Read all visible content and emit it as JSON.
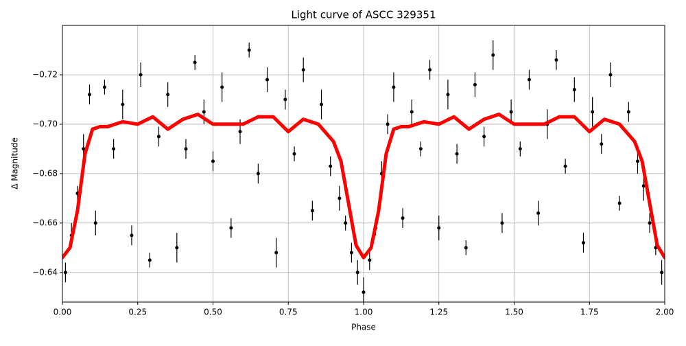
{
  "chart_data": {
    "type": "errorbar-line",
    "title": "Light curve of ASCC 329351",
    "xlabel": "Phase",
    "ylabel": "Δ Magnitude",
    "xlim": [
      0,
      2
    ],
    "xticks": [
      {
        "value": 0,
        "label": "0.00"
      },
      {
        "value": 0.25,
        "label": "0.25"
      },
      {
        "value": 0.5,
        "label": "0.50"
      },
      {
        "value": 0.75,
        "label": "0.75"
      },
      {
        "value": 1,
        "label": "1.00"
      },
      {
        "value": 1.25,
        "label": "1.25"
      },
      {
        "value": 1.5,
        "label": "1.50"
      },
      {
        "value": 1.75,
        "label": "1.75"
      },
      {
        "value": 2,
        "label": "2.00"
      }
    ],
    "ylim": [
      -0.74,
      -0.628
    ],
    "y_inverted": true,
    "yticks": [
      {
        "value": -0.72,
        "label": "−0.72"
      },
      {
        "value": -0.7,
        "label": "−0.70"
      },
      {
        "value": -0.68,
        "label": "−0.68"
      },
      {
        "value": -0.66,
        "label": "−0.66"
      },
      {
        "value": -0.64,
        "label": "−0.64"
      }
    ],
    "grid": true,
    "points": {
      "color": "#000000",
      "x": [
        0.01,
        0.03,
        0.05,
        0.07,
        0.09,
        0.11,
        0.14,
        0.17,
        0.2,
        0.23,
        0.26,
        0.29,
        0.32,
        0.35,
        0.38,
        0.41,
        0.44,
        0.47,
        0.5,
        0.53,
        0.56,
        0.59,
        0.62,
        0.65,
        0.68,
        0.71,
        0.74,
        0.77,
        0.8,
        0.83,
        0.86,
        0.89,
        0.92,
        0.94,
        0.96,
        0.98,
        1.0,
        1.02,
        1.04,
        1.06,
        1.08,
        1.1,
        1.13,
        1.16,
        1.19,
        1.22,
        1.25,
        1.28,
        1.31,
        1.34,
        1.37,
        1.4,
        1.43,
        1.46,
        1.49,
        1.52,
        1.55,
        1.58,
        1.61,
        1.64,
        1.67,
        1.7,
        1.73,
        1.76,
        1.79,
        1.82,
        1.85,
        1.88,
        1.91,
        1.93,
        1.95,
        1.97,
        1.99
      ],
      "values": [
        -0.64,
        -0.655,
        -0.672,
        -0.69,
        -0.712,
        -0.66,
        -0.715,
        -0.69,
        -0.708,
        -0.655,
        -0.72,
        -0.645,
        -0.695,
        -0.712,
        -0.65,
        -0.69,
        -0.725,
        -0.705,
        -0.685,
        -0.715,
        -0.658,
        -0.697,
        -0.73,
        -0.68,
        -0.718,
        -0.648,
        -0.71,
        -0.688,
        -0.722,
        -0.665,
        -0.708,
        -0.683,
        -0.67,
        -0.66,
        -0.648,
        -0.64,
        -0.632,
        -0.645,
        -0.658,
        -0.68,
        -0.7,
        -0.715,
        -0.662,
        -0.705,
        -0.69,
        -0.722,
        -0.658,
        -0.712,
        -0.688,
        -0.65,
        -0.716,
        -0.695,
        -0.728,
        -0.66,
        -0.705,
        -0.69,
        -0.718,
        -0.664,
        -0.7,
        -0.726,
        -0.683,
        -0.714,
        -0.652,
        -0.705,
        -0.692,
        -0.72,
        -0.668,
        -0.705,
        -0.685,
        -0.675,
        -0.66,
        -0.65,
        -0.64
      ],
      "errors": [
        0.004,
        0.005,
        0.003,
        0.006,
        0.004,
        0.005,
        0.003,
        0.004,
        0.006,
        0.004,
        0.005,
        0.003,
        0.004,
        0.005,
        0.006,
        0.004,
        0.003,
        0.005,
        0.004,
        0.006,
        0.004,
        0.005,
        0.003,
        0.004,
        0.005,
        0.006,
        0.004,
        0.003,
        0.005,
        0.004,
        0.006,
        0.004,
        0.005,
        0.003,
        0.004,
        0.005,
        0.006,
        0.004,
        0.003,
        0.005,
        0.004,
        0.006,
        0.004,
        0.005,
        0.003,
        0.004,
        0.005,
        0.006,
        0.004,
        0.003,
        0.005,
        0.004,
        0.006,
        0.004,
        0.005,
        0.003,
        0.004,
        0.005,
        0.006,
        0.004,
        0.003,
        0.005,
        0.004,
        0.006,
        0.004,
        0.005,
        0.003,
        0.004,
        0.005,
        0.006,
        0.004,
        0.003,
        0.005
      ]
    },
    "curve": {
      "color": "#ff0000",
      "x": [
        0,
        0.025,
        0.05,
        0.075,
        0.1,
        0.125,
        0.15,
        0.2,
        0.25,
        0.3,
        0.35,
        0.4,
        0.45,
        0.5,
        0.55,
        0.6,
        0.65,
        0.7,
        0.75,
        0.8,
        0.85,
        0.9,
        0.925,
        0.95,
        0.975,
        1.0,
        1.025,
        1.05,
        1.075,
        1.1,
        1.125,
        1.15,
        1.2,
        1.25,
        1.3,
        1.35,
        1.4,
        1.45,
        1.5,
        1.55,
        1.6,
        1.65,
        1.7,
        1.75,
        1.8,
        1.85,
        1.9,
        1.925,
        1.95,
        1.975,
        2.0
      ],
      "values": [
        -0.646,
        -0.65,
        -0.665,
        -0.688,
        -0.698,
        -0.699,
        -0.699,
        -0.701,
        -0.7,
        -0.703,
        -0.698,
        -0.702,
        -0.704,
        -0.7,
        -0.7,
        -0.7,
        -0.703,
        -0.703,
        -0.697,
        -0.702,
        -0.7,
        -0.693,
        -0.685,
        -0.668,
        -0.651,
        -0.646,
        -0.65,
        -0.665,
        -0.688,
        -0.698,
        -0.699,
        -0.699,
        -0.701,
        -0.7,
        -0.703,
        -0.698,
        -0.702,
        -0.704,
        -0.7,
        -0.7,
        -0.7,
        -0.703,
        -0.703,
        -0.697,
        -0.702,
        -0.7,
        -0.693,
        -0.685,
        -0.668,
        -0.651,
        -0.646
      ]
    }
  }
}
